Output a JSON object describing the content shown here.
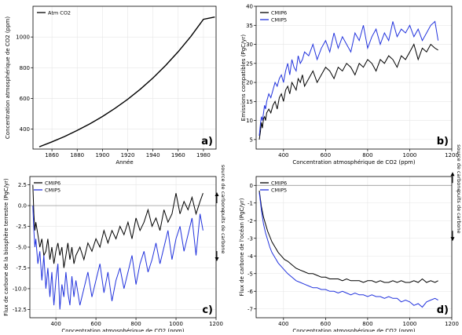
{
  "colors": {
    "black_series": "#000000",
    "blue_series": "#2233dd",
    "grid": "#e6e6e6",
    "zero_line": "#888888"
  },
  "chart_data": [
    {
      "id": "a",
      "type": "line",
      "panel_label": "a)",
      "xlabel": "Année",
      "ylabel": "Concentration atmosphérique de CO2 (ppm)",
      "xlim": [
        1845,
        1990
      ],
      "ylim": [
        270,
        1200
      ],
      "xticks": [
        1860,
        1880,
        1900,
        1920,
        1940,
        1960,
        1980
      ],
      "yticks": [
        400,
        600,
        800,
        1000
      ],
      "grid": true,
      "legend": "top-left",
      "series": [
        {
          "name": "Atm CO2",
          "color": "#000000",
          "x": [
            1850,
            1860,
            1870,
            1880,
            1890,
            1900,
            1910,
            1920,
            1930,
            1940,
            1950,
            1960,
            1970,
            1980,
            1989
          ],
          "y": [
            285,
            317,
            352,
            391,
            434,
            482,
            535,
            594,
            660,
            733,
            814,
            904,
            1004,
            1115,
            1130
          ]
        }
      ]
    },
    {
      "id": "b",
      "type": "line",
      "panel_label": "b)",
      "xlabel": "Concentration atmosphérique de CO2 (ppm)",
      "ylabel": "Emissions compatibles (PgC/yr)",
      "xlim": [
        270,
        1200
      ],
      "ylim": [
        2.5,
        40
      ],
      "xticks": [
        400,
        600,
        800,
        1000,
        1200
      ],
      "yticks": [
        5,
        10,
        15,
        20,
        25,
        30,
        35,
        40
      ],
      "grid": true,
      "legend": "top-left",
      "series": [
        {
          "name": "CMIP6",
          "color": "#000000",
          "x": [
            285,
            290,
            295,
            300,
            305,
            310,
            315,
            320,
            330,
            340,
            350,
            360,
            370,
            380,
            390,
            400,
            410,
            420,
            430,
            440,
            450,
            460,
            470,
            480,
            490,
            500,
            520,
            540,
            560,
            580,
            600,
            620,
            640,
            660,
            680,
            700,
            720,
            740,
            760,
            780,
            800,
            820,
            840,
            860,
            880,
            900,
            920,
            940,
            960,
            980,
            1000,
            1020,
            1040,
            1060,
            1080,
            1100,
            1120,
            1135
          ],
          "y": [
            5,
            7,
            9.5,
            8,
            10.5,
            11,
            10,
            12,
            13,
            12,
            14,
            15,
            13,
            16,
            17,
            15,
            18,
            19,
            17,
            20,
            19,
            18,
            21,
            20,
            22,
            19,
            21,
            23,
            20,
            22,
            24,
            23,
            21,
            24,
            23,
            25,
            24,
            22,
            25,
            24,
            26,
            25,
            23,
            26,
            25,
            27,
            26,
            24,
            27,
            26,
            28,
            30,
            26,
            29,
            28,
            30,
            29,
            28.5
          ]
        },
        {
          "name": "CMIP5",
          "color": "#2233dd",
          "x": [
            285,
            290,
            295,
            300,
            305,
            310,
            315,
            320,
            330,
            340,
            350,
            360,
            370,
            380,
            390,
            400,
            410,
            420,
            430,
            440,
            450,
            460,
            470,
            480,
            490,
            500,
            520,
            540,
            560,
            580,
            600,
            620,
            640,
            660,
            680,
            700,
            720,
            740,
            760,
            780,
            800,
            820,
            840,
            860,
            880,
            900,
            920,
            940,
            960,
            980,
            1000,
            1020,
            1040,
            1060,
            1080,
            1100,
            1120,
            1135
          ],
          "y": [
            6,
            9,
            11,
            10,
            12,
            14,
            13,
            15,
            17,
            16,
            18,
            20,
            19,
            21,
            22,
            20,
            23,
            25,
            22,
            26,
            24,
            23,
            27,
            25,
            26,
            28,
            27,
            30,
            26,
            29,
            31,
            28,
            33,
            29,
            32,
            30,
            28,
            33,
            31,
            35,
            29,
            32,
            34,
            30,
            33,
            31,
            36,
            32,
            34,
            33,
            35,
            32,
            34,
            31,
            33,
            35,
            36,
            31
          ]
        }
      ]
    },
    {
      "id": "c",
      "type": "line",
      "panel_label": "c)",
      "xlabel": "Concentration atmosphérique de CO2 (ppm)",
      "ylabel": "Flux de carbone de la biosphère terrestre (PgC/yr)",
      "xlim": [
        270,
        1200
      ],
      "ylim": [
        -13.5,
        3.5
      ],
      "xticks": [
        400,
        600,
        800,
        1000,
        1200
      ],
      "yticks": [
        -12.5,
        -10.0,
        -7.5,
        -5.0,
        -2.5,
        0.0,
        2.5
      ],
      "grid": true,
      "legend": "top-left",
      "side_labels": {
        "up": "source de carbone",
        "down": "puits de carbone"
      },
      "series": [
        {
          "name": "CMIP6",
          "color": "#000000",
          "x": [
            285,
            290,
            295,
            300,
            310,
            320,
            330,
            340,
            350,
            360,
            370,
            380,
            390,
            400,
            410,
            420,
            430,
            440,
            450,
            460,
            470,
            480,
            490,
            500,
            520,
            540,
            560,
            580,
            600,
            620,
            640,
            660,
            680,
            700,
            720,
            740,
            760,
            780,
            800,
            820,
            840,
            860,
            880,
            900,
            920,
            940,
            960,
            980,
            1000,
            1020,
            1040,
            1060,
            1080,
            1100,
            1120,
            1135
          ],
          "y": [
            2.5,
            -1,
            -3,
            -2,
            -3.5,
            -5,
            -4,
            -6,
            -5.5,
            -4,
            -6.5,
            -5,
            -7,
            -5.5,
            -4.5,
            -6,
            -5,
            -7.5,
            -6,
            -4.5,
            -6.5,
            -5,
            -7,
            -6,
            -5,
            -6.5,
            -4.5,
            -5.5,
            -4,
            -5,
            -3,
            -4.5,
            -3,
            -4,
            -2.5,
            -3.5,
            -2,
            -4,
            -1.5,
            -3,
            -2,
            -0.5,
            -2.5,
            -1.5,
            -3,
            -0.5,
            -2,
            -1,
            1.5,
            -1,
            0.5,
            -0.5,
            1,
            -1,
            0.5,
            1.5
          ]
        },
        {
          "name": "CMIP5",
          "color": "#2233dd",
          "x": [
            285,
            290,
            295,
            300,
            310,
            320,
            330,
            340,
            350,
            360,
            370,
            380,
            390,
            400,
            410,
            420,
            430,
            440,
            450,
            460,
            470,
            480,
            490,
            500,
            520,
            540,
            560,
            580,
            600,
            620,
            640,
            660,
            680,
            700,
            720,
            740,
            760,
            780,
            800,
            820,
            840,
            860,
            880,
            900,
            920,
            940,
            960,
            980,
            1000,
            1020,
            1040,
            1060,
            1080,
            1100,
            1120,
            1135
          ],
          "y": [
            0,
            -3,
            -5,
            -4,
            -7,
            -5.5,
            -9,
            -6,
            -10,
            -7.5,
            -11,
            -8,
            -12,
            -9,
            -7,
            -12.5,
            -9.5,
            -11,
            -8,
            -10.5,
            -12,
            -8.5,
            -11,
            -9,
            -12,
            -10,
            -8,
            -11,
            -9,
            -7,
            -10.5,
            -8,
            -11.5,
            -9,
            -7.5,
            -10,
            -8,
            -6,
            -9.5,
            -7,
            -5.5,
            -8,
            -6.5,
            -4.5,
            -7,
            -5,
            -3,
            -6.5,
            -4,
            -2.5,
            -5.5,
            -3.5,
            -1.5,
            -6,
            -1,
            -3
          ]
        }
      ]
    },
    {
      "id": "d",
      "type": "line",
      "panel_label": "d)",
      "xlabel": "Concentration atmosphérique de CO2 (ppm)",
      "ylabel": "Flux de carbone de l'océan (PgC/yr)",
      "xlim": [
        270,
        1200
      ],
      "ylim": [
        -7.5,
        0.5
      ],
      "xticks": [
        400,
        600,
        800,
        1000,
        1200
      ],
      "yticks": [
        -7,
        -6,
        -5,
        -4,
        -3,
        -2,
        -1,
        0
      ],
      "grid": true,
      "legend": "top-left",
      "side_labels": {
        "up": "source de carbone",
        "down": "puits de carbone"
      },
      "series": [
        {
          "name": "CMIP6",
          "color": "#000000",
          "x": [
            285,
            295,
            305,
            315,
            325,
            335,
            345,
            360,
            375,
            390,
            405,
            420,
            440,
            460,
            480,
            500,
            520,
            540,
            560,
            580,
            600,
            620,
            640,
            660,
            680,
            700,
            720,
            740,
            760,
            780,
            800,
            820,
            840,
            860,
            880,
            900,
            920,
            940,
            960,
            980,
            1000,
            1020,
            1040,
            1060,
            1080,
            1100,
            1120,
            1135
          ],
          "y": [
            -0.3,
            -1.2,
            -1.8,
            -2.2,
            -2.6,
            -2.9,
            -3.2,
            -3.5,
            -3.8,
            -4.0,
            -4.2,
            -4.3,
            -4.5,
            -4.7,
            -4.8,
            -4.9,
            -5.0,
            -5.0,
            -5.1,
            -5.2,
            -5.2,
            -5.3,
            -5.3,
            -5.3,
            -5.4,
            -5.3,
            -5.4,
            -5.4,
            -5.4,
            -5.5,
            -5.4,
            -5.4,
            -5.5,
            -5.4,
            -5.5,
            -5.5,
            -5.4,
            -5.5,
            -5.4,
            -5.5,
            -5.5,
            -5.4,
            -5.5,
            -5.3,
            -5.5,
            -5.4,
            -5.5,
            -5.4
          ]
        },
        {
          "name": "CMIP5",
          "color": "#2233dd",
          "x": [
            285,
            295,
            305,
            315,
            325,
            335,
            345,
            360,
            375,
            390,
            405,
            420,
            440,
            460,
            480,
            500,
            520,
            540,
            560,
            580,
            600,
            620,
            640,
            660,
            680,
            700,
            720,
            740,
            760,
            780,
            800,
            820,
            840,
            860,
            880,
            900,
            920,
            940,
            960,
            980,
            1000,
            1020,
            1040,
            1060,
            1080,
            1100,
            1120,
            1135
          ],
          "y": [
            -0.4,
            -1.4,
            -2.2,
            -2.7,
            -3.1,
            -3.5,
            -3.8,
            -4.1,
            -4.4,
            -4.6,
            -4.8,
            -5.0,
            -5.2,
            -5.4,
            -5.5,
            -5.6,
            -5.7,
            -5.8,
            -5.8,
            -5.9,
            -5.9,
            -6.0,
            -6.0,
            -6.1,
            -6.0,
            -6.1,
            -6.2,
            -6.1,
            -6.2,
            -6.2,
            -6.3,
            -6.2,
            -6.3,
            -6.3,
            -6.4,
            -6.3,
            -6.4,
            -6.4,
            -6.6,
            -6.5,
            -6.6,
            -6.8,
            -6.7,
            -6.9,
            -6.6,
            -6.5,
            -6.4,
            -6.5
          ]
        }
      ]
    }
  ]
}
